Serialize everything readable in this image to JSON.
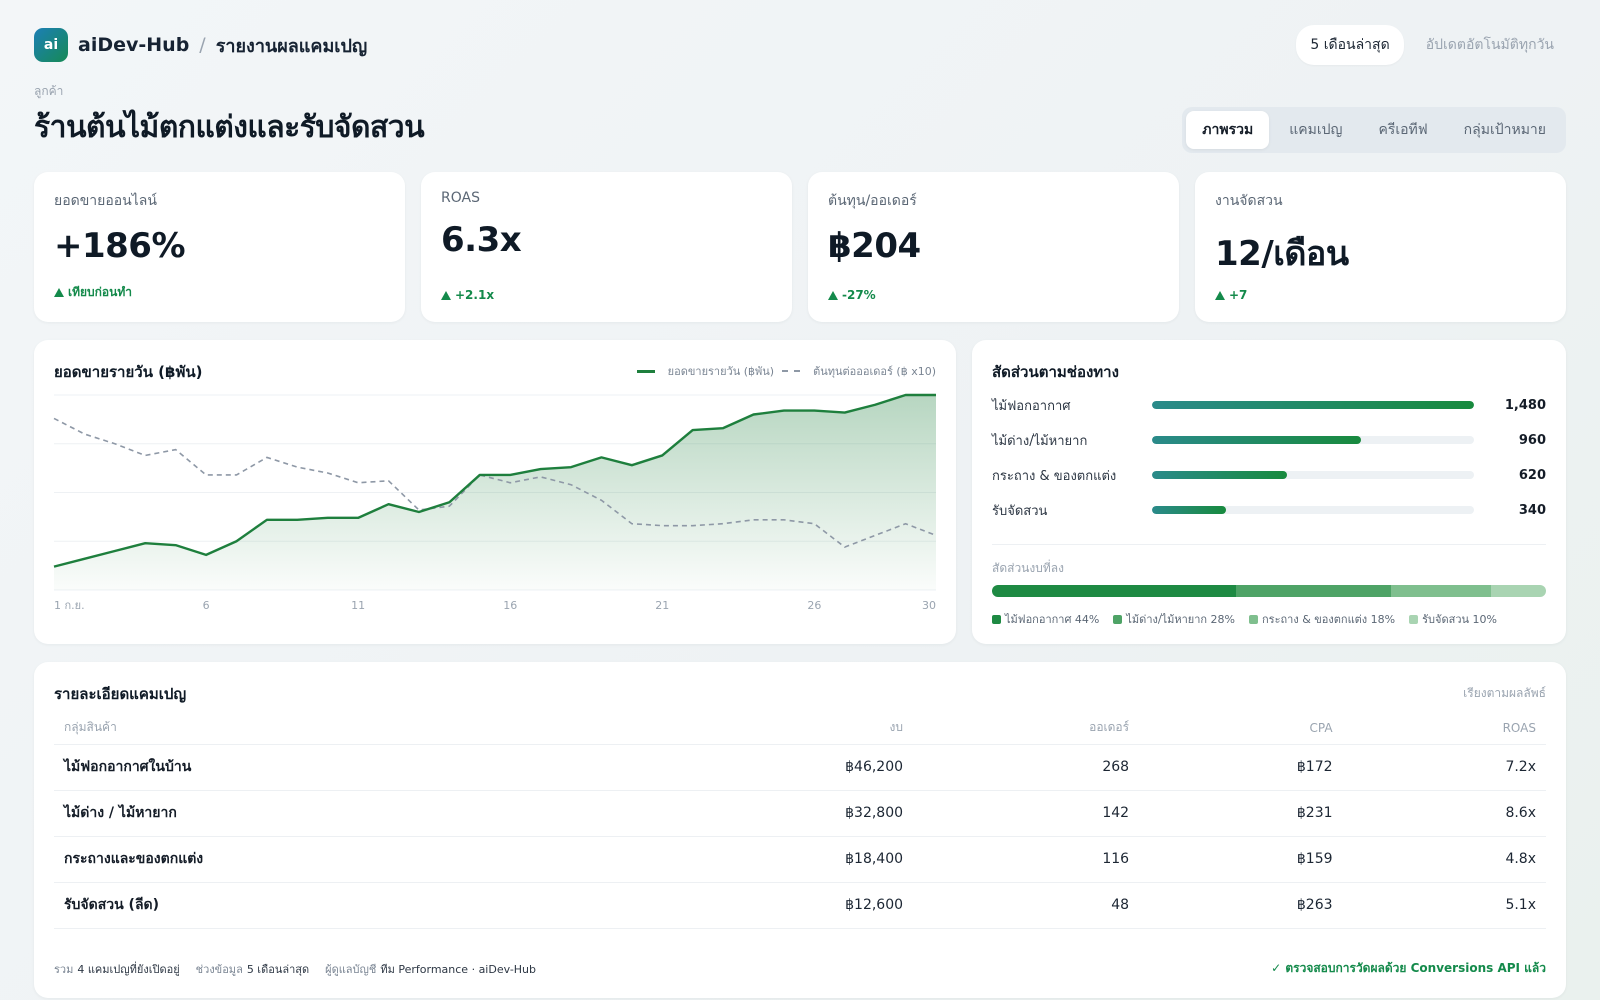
{
  "app": {
    "logo_text": "ai",
    "name": "aiDev-Hub",
    "separator": "/",
    "page": "รายงานผลแคมเปญ"
  },
  "header": {
    "range": "5 เดือนล่าสุด",
    "auto_update": "อัปเดตอัตโนมัติทุกวัน"
  },
  "client": {
    "label": "ลูกค้า",
    "name": "ร้านต้นไม้ตกแต่งและรับจัดสวน"
  },
  "tabs": [
    {
      "label": "ภาพรวม",
      "active": true
    },
    {
      "label": "แคมเปญ",
      "active": false
    },
    {
      "label": "ครีเอทีฟ",
      "active": false
    },
    {
      "label": "กลุ่มเป้าหมาย",
      "active": false
    }
  ],
  "kpis": [
    {
      "label": "ยอดขายออนไลน์",
      "value": "+186%",
      "delta": "เทียบก่อนทำ"
    },
    {
      "label": "ROAS",
      "value": "6.3x",
      "delta": "+2.1x"
    },
    {
      "label": "ต้นทุน/ออเดอร์",
      "value": "฿204",
      "delta": "-27%"
    },
    {
      "label": "งานจัดสวน",
      "value": "12/เดือน",
      "delta": "+7"
    }
  ],
  "chart_data": {
    "type": "line",
    "title": "ยอดขายรายวัน (฿พัน)",
    "x_tick_labels": [
      "1 ก.ย.",
      "6",
      "11",
      "16",
      "21",
      "26",
      "30"
    ],
    "x": [
      1,
      2,
      3,
      4,
      5,
      6,
      7,
      8,
      9,
      10,
      11,
      12,
      13,
      14,
      15,
      16,
      17,
      18,
      19,
      20,
      21,
      22,
      23,
      24,
      25,
      26,
      27,
      28,
      29,
      30
    ],
    "ylim": [
      0,
      100
    ],
    "grid": true,
    "legend_position": "top-right",
    "series": [
      {
        "name": "ยอดขายรายวัน (฿พัน)",
        "color": "#1e7f3d",
        "style": "solid-area",
        "values": [
          12,
          16,
          20,
          24,
          23,
          18,
          25,
          36,
          36,
          37,
          37,
          44,
          40,
          45,
          59,
          59,
          62,
          63,
          68,
          64,
          69,
          82,
          83,
          90,
          92,
          92,
          91,
          95,
          100,
          106
        ]
      },
      {
        "name": "ต้นทุนต่อออเดอร์ (฿ x10)",
        "color": "#8e98a6",
        "style": "dashed",
        "values": [
          88,
          80,
          75,
          69,
          72,
          59,
          59,
          68,
          63,
          60,
          55,
          56,
          41,
          43,
          59,
          55,
          58,
          54,
          46,
          34,
          33,
          33,
          34,
          36,
          36,
          34,
          22,
          28,
          34,
          28
        ]
      }
    ]
  },
  "channels": {
    "title": "สัดส่วนตามช่องทาง",
    "max": 1480,
    "items": [
      {
        "label": "ไม้ฟอกอากาศ",
        "value": 1480,
        "display": "1,480"
      },
      {
        "label": "ไม้ด่าง/ไม้หายาก",
        "value": 960,
        "display": "960"
      },
      {
        "label": "กระถาง & ของตกแต่ง",
        "value": 620,
        "display": "620"
      },
      {
        "label": "รับจัดสวน",
        "value": 340,
        "display": "340"
      }
    ],
    "share_title": "สัดส่วนงบที่ลง",
    "shares": [
      {
        "label": "ไม้ฟอกอากาศ 44%",
        "percent": 44,
        "color": "#1e8a43"
      },
      {
        "label": "ไม้ด่าง/ไม้หายาก 28%",
        "percent": 28,
        "color": "#4ea366"
      },
      {
        "label": "กระถาง & ของตกแต่ง 18%",
        "percent": 18,
        "color": "#7fbf8e"
      },
      {
        "label": "รับจัดสวน 10%",
        "percent": 10,
        "color": "#a9d4b2"
      }
    ]
  },
  "table": {
    "title": "รายละเอียดแคมเปญ",
    "sort_label": "เรียงตามผลลัพธ์",
    "columns": [
      "กลุ่มสินค้า",
      "งบ",
      "ออเดอร์",
      "CPA",
      "ROAS"
    ],
    "rows": [
      [
        "ไม้ฟอกอากาศในบ้าน",
        "฿46,200",
        "268",
        "฿172",
        "7.2x"
      ],
      [
        "ไม้ด่าง / ไม้หายาก",
        "฿32,800",
        "142",
        "฿231",
        "8.6x"
      ],
      [
        "กระถางและของตกแต่ง",
        "฿18,400",
        "116",
        "฿159",
        "4.8x"
      ],
      [
        "รับจัดสวน (ลีด)",
        "฿12,600",
        "48",
        "฿263",
        "5.1x"
      ]
    ],
    "footer": {
      "total_label": "รวม",
      "total_value": "4 แคมเปญที่ยังเปิดอยู่",
      "period_label": "ช่วงข้อมูล",
      "period_value": "5 เดือนล่าสุด",
      "manager_label": "ผู้ดูแลบัญชี",
      "manager_value": "ทีม Performance · aiDev-Hub",
      "verify": "✓ ตรวจสอบการวัดผลด้วย Conversions API แล้ว"
    }
  }
}
